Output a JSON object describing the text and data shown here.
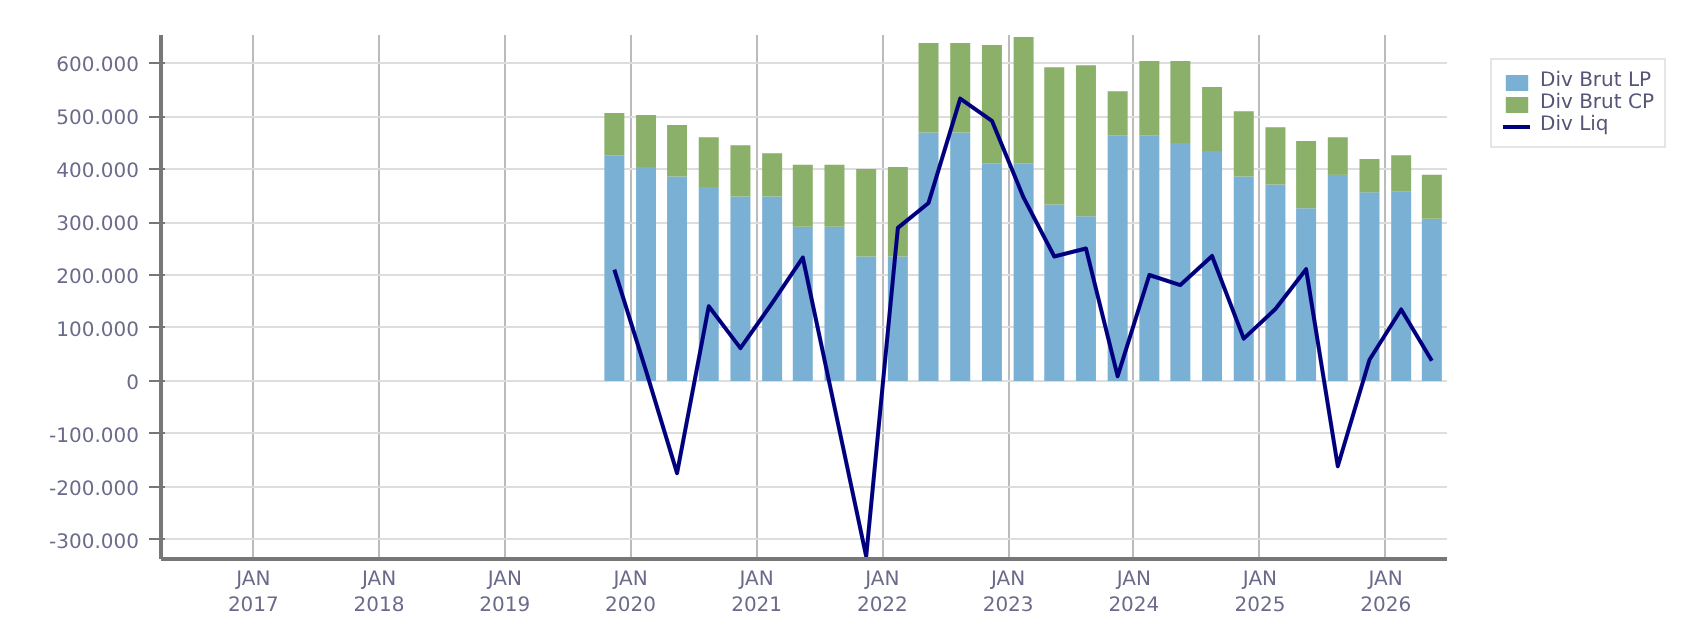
{
  "chart_data": {
    "type": "bar",
    "stacked": true,
    "x": [
      "2019-11-15",
      "2020-02-15",
      "2020-05-15",
      "2020-08-15",
      "2020-11-15",
      "2021-02-15",
      "2021-05-15",
      "2021-08-15",
      "2021-11-15",
      "2022-02-15",
      "2022-05-15",
      "2022-08-15",
      "2022-11-15",
      "2023-02-15",
      "2023-05-15",
      "2023-08-15",
      "2023-11-15",
      "2024-02-15",
      "2024-05-15",
      "2024-08-15",
      "2024-11-15",
      "2025-02-15",
      "2025-05-15",
      "2025-08-15",
      "2025-11-15",
      "2026-02-15",
      "2026-05-15"
    ],
    "series": [
      {
        "name": "Div Brut LP",
        "color": "#7ab0d4",
        "values": [
          426000,
          404000,
          386000,
          366000,
          348000,
          348000,
          291000,
          291000,
          235000,
          235000,
          469000,
          469000,
          411000,
          411000,
          333000,
          311000,
          464000,
          464000,
          449000,
          434000,
          386000,
          371000,
          326000,
          389000,
          356000,
          358000,
          306000
        ]
      },
      {
        "name": "Div Brut CP",
        "color": "#8ab06a",
        "values": [
          80000,
          98000,
          97000,
          94000,
          97000,
          82000,
          117000,
          117000,
          165000,
          169000,
          169000,
          169000,
          223000,
          238000,
          259000,
          285000,
          83000,
          140000,
          155000,
          121000,
          123000,
          108000,
          127000,
          71000,
          63000,
          68000,
          83000
        ]
      },
      {
        "name": "Div Liq",
        "color": "#00007f",
        "type": "line",
        "values": [
          210000,
          19000,
          -174000,
          141000,
          62000,
          147000,
          233000,
          -49000,
          -331000,
          289000,
          336000,
          533000,
          491000,
          346000,
          235000,
          250000,
          9000,
          200000,
          181000,
          236000,
          80000,
          136000,
          211000,
          -161000,
          40000,
          135000,
          38000
        ]
      }
    ],
    "xlim": [
      "2016-04-08",
      "2026-06-28"
    ],
    "xticks": [
      {
        "value": "2017-01-01",
        "label": "JAN\n2017"
      },
      {
        "value": "2018-01-01",
        "label": "JAN\n2018"
      },
      {
        "value": "2019-01-01",
        "label": "JAN\n2019"
      },
      {
        "value": "2020-01-01",
        "label": "JAN\n2020"
      },
      {
        "value": "2021-01-01",
        "label": "JAN\n2021"
      },
      {
        "value": "2022-01-01",
        "label": "JAN\n2022"
      },
      {
        "value": "2023-01-01",
        "label": "JAN\n2023"
      },
      {
        "value": "2024-01-01",
        "label": "JAN\n2024"
      },
      {
        "value": "2025-01-01",
        "label": "JAN\n2025"
      },
      {
        "value": "2026-01-01",
        "label": "JAN\n2026"
      }
    ],
    "ylim": [
      -336000,
      653000
    ],
    "yticks": [
      {
        "value": -300000,
        "label": "-300.000"
      },
      {
        "value": -200000,
        "label": "-200.000"
      },
      {
        "value": -100000,
        "label": "-100.000"
      },
      {
        "value": 0,
        "label": "0"
      },
      {
        "value": 100000,
        "label": "100.000"
      },
      {
        "value": 200000,
        "label": "200.000"
      },
      {
        "value": 300000,
        "label": "300.000"
      },
      {
        "value": 400000,
        "label": "400.000"
      },
      {
        "value": 500000,
        "label": "500.000"
      },
      {
        "value": 600000,
        "label": "600.000"
      }
    ],
    "grid": true,
    "legend": "right",
    "marker": "none",
    "line_style": "solid"
  }
}
